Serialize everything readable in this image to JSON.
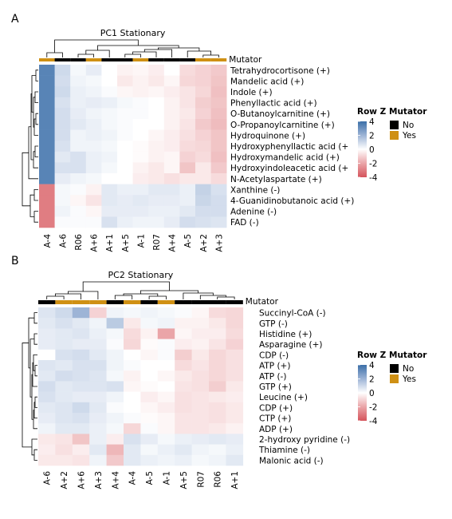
{
  "colors": {
    "scale": [
      "#d5545c",
      "#eaa5a8",
      "#ffffff",
      "#9db4d6",
      "#3b6fa8"
    ],
    "mutator_no": "#000000",
    "mutator_yes": "#cf9014",
    "dendro": "#000000"
  },
  "chart_data": [
    {
      "panel_label": "A",
      "type": "heatmap",
      "title": "PC1 Stationary",
      "annotation_label": "Mutator",
      "columns": [
        "A-4",
        "A-6",
        "R06",
        "A+6",
        "A+1",
        "A+5",
        "A-1",
        "R07",
        "A+4",
        "A-5",
        "A+2",
        "A+3"
      ],
      "mutator": [
        "Yes",
        "No",
        "No",
        "Yes",
        "No",
        "No",
        "Yes",
        "No",
        "No",
        "No",
        "Yes",
        "Yes"
      ],
      "rows": [
        "Tetrahydrocortisone (+)",
        "Mandelic acid (+)",
        "Indole (+)",
        "Phenyllactic acid (+)",
        "O-Butanoylcarnitine (+)",
        "O-Propanoylcarnitine (+)",
        "Hydroquinone (+)",
        "Hydroxyphenyllactic acid (+",
        "Hydroxymandelic acid (+)",
        "Hydroxyindoleacetic acid (+",
        "N-Acetylaspartate (+)",
        "Xanthine (-)",
        "4-Guanidinobutanoic acid (+)",
        "Adenine (-)",
        "FAD (-)"
      ],
      "values": [
        [
          3.4,
          1.0,
          0.2,
          0.5,
          0.0,
          -0.3,
          -0.2,
          -0.4,
          0.0,
          -0.8,
          -1.0,
          -1.2
        ],
        [
          3.4,
          0.9,
          0.3,
          0.2,
          0.0,
          -0.5,
          -0.3,
          -0.5,
          -0.2,
          -0.9,
          -1.0,
          -1.3
        ],
        [
          3.4,
          1.0,
          0.4,
          0.3,
          0.1,
          -0.2,
          -0.3,
          -0.2,
          -0.4,
          -0.6,
          -0.9,
          -1.4
        ],
        [
          3.4,
          0.8,
          0.4,
          0.5,
          0.4,
          0.2,
          0.1,
          0.0,
          -0.3,
          -0.6,
          -1.1,
          -1.3
        ],
        [
          3.4,
          0.9,
          0.5,
          0.3,
          0.2,
          0.1,
          0.1,
          0.0,
          -0.3,
          -0.5,
          -1.0,
          -1.4
        ],
        [
          3.4,
          0.9,
          0.6,
          0.4,
          0.2,
          0.1,
          0.0,
          0.0,
          -0.3,
          -0.6,
          -1.2,
          -1.5
        ],
        [
          3.4,
          0.9,
          0.3,
          0.4,
          0.3,
          0.1,
          0.0,
          -0.2,
          -0.4,
          -0.7,
          -1.0,
          -1.3
        ],
        [
          3.4,
          0.8,
          0.3,
          0.3,
          0.2,
          0.0,
          -0.1,
          -0.3,
          -0.4,
          -0.8,
          -0.9,
          -1.3
        ],
        [
          3.4,
          0.6,
          0.8,
          0.4,
          0.3,
          0.0,
          -0.1,
          -0.3,
          -0.2,
          -1.0,
          -0.8,
          -1.4
        ],
        [
          3.4,
          0.8,
          0.8,
          0.4,
          0.2,
          0.0,
          -0.3,
          -0.5,
          -0.2,
          -1.3,
          -0.5,
          -1.2
        ],
        [
          3.4,
          0.5,
          0.3,
          0.2,
          0.0,
          0.0,
          -0.4,
          -0.5,
          -0.7,
          -0.5,
          -0.5,
          -0.8
        ],
        [
          -3.0,
          0.2,
          0.1,
          -0.3,
          0.6,
          0.4,
          0.4,
          0.6,
          0.6,
          0.4,
          1.2,
          0.8
        ],
        [
          -3.0,
          0.2,
          -0.2,
          -0.6,
          0.6,
          0.5,
          0.6,
          0.5,
          0.5,
          0.4,
          1.1,
          0.9
        ],
        [
          -3.0,
          0.3,
          0.1,
          -0.2,
          0.5,
          0.5,
          0.5,
          0.4,
          0.4,
          0.6,
          0.9,
          0.9
        ],
        [
          -3.0,
          0.1,
          0.1,
          0.1,
          0.8,
          0.4,
          0.3,
          0.3,
          0.5,
          0.9,
          0.8,
          0.7
        ]
      ]
    },
    {
      "panel_label": "B",
      "type": "heatmap",
      "title": "PC2 Stationary",
      "annotation_label": "Mutator",
      "columns": [
        "A-6",
        "A+2",
        "A+6",
        "A+3",
        "A+4",
        "A-4",
        "A-5",
        "A-1",
        "A+5",
        "R07",
        "R06",
        "A+1"
      ],
      "mutator": [
        "No",
        "Yes",
        "Yes",
        "Yes",
        "No",
        "Yes",
        "No",
        "Yes",
        "No",
        "No",
        "No",
        "No"
      ],
      "rows": [
        "Succinyl-CoA (-)",
        "GTP (-)",
        "Histidine (+)",
        "Asparagine (+)",
        "CDP (-)",
        "ATP (+)",
        "ATP (-)",
        "GTP (+)",
        "Leucine (+)",
        "CDP (+)",
        "CTP (+)",
        "ADP (+)",
        "2-hydroxy pyridine (-)",
        "Thiamine (-)",
        "Malonic acid (-)"
      ],
      "values": [
        [
          0.7,
          1.0,
          2.0,
          -1.0,
          0.3,
          0.2,
          0.3,
          0.2,
          0.1,
          -0.2,
          -0.8,
          -0.9
        ],
        [
          0.6,
          0.8,
          0.6,
          0.3,
          1.4,
          -0.5,
          0.2,
          0.3,
          -0.3,
          -0.3,
          -0.5,
          -0.9
        ],
        [
          0.5,
          0.6,
          0.7,
          0.4,
          0.2,
          -0.8,
          -0.3,
          -2.0,
          -0.2,
          -0.4,
          -0.4,
          -0.8
        ],
        [
          0.5,
          0.6,
          0.5,
          0.5,
          0.1,
          -0.9,
          -0.1,
          0.1,
          -0.4,
          -0.3,
          -0.6,
          -1.0
        ],
        [
          0.0,
          0.8,
          0.9,
          0.6,
          0.3,
          0.0,
          -0.2,
          0.1,
          -1.1,
          -0.5,
          -0.9,
          -0.7
        ],
        [
          0.7,
          0.6,
          0.8,
          0.8,
          0.3,
          0.1,
          0.0,
          0.0,
          -0.8,
          -0.6,
          -0.9,
          -0.7
        ],
        [
          0.6,
          0.9,
          0.8,
          0.7,
          0.2,
          -0.3,
          0.0,
          -0.2,
          -0.5,
          -0.7,
          -0.9,
          -0.7
        ],
        [
          0.9,
          0.6,
          0.7,
          0.7,
          0.8,
          -0.2,
          -0.1,
          0.0,
          -0.6,
          -0.7,
          -1.1,
          -0.5
        ],
        [
          0.8,
          0.6,
          0.5,
          0.5,
          0.3,
          0.0,
          -0.4,
          -0.2,
          -0.7,
          -0.6,
          -0.5,
          -0.4
        ],
        [
          0.6,
          0.7,
          1.0,
          0.6,
          0.1,
          0.0,
          -0.2,
          -0.4,
          -0.7,
          -0.6,
          -0.7,
          -0.5
        ],
        [
          0.5,
          0.7,
          0.8,
          0.5,
          0.3,
          0.1,
          -0.1,
          -0.2,
          -0.6,
          -0.6,
          -0.7,
          -0.5
        ],
        [
          0.3,
          0.6,
          0.6,
          0.4,
          0.2,
          -0.9,
          0.1,
          -0.2,
          -0.6,
          -0.6,
          -0.5,
          -0.3
        ],
        [
          -0.5,
          -0.6,
          -1.3,
          0.4,
          -0.4,
          0.8,
          0.5,
          0.2,
          0.4,
          0.5,
          0.6,
          0.5
        ],
        [
          -0.4,
          -0.7,
          -0.4,
          0.6,
          -1.6,
          0.6,
          0.2,
          0.4,
          0.6,
          0.3,
          0.2,
          0.4
        ],
        [
          -0.5,
          -0.5,
          -0.6,
          0.3,
          -1.2,
          0.6,
          0.4,
          0.3,
          0.4,
          0.2,
          0.3,
          0.6
        ]
      ]
    }
  ],
  "legends": {
    "row_z": {
      "title": "Row Z",
      "ticks": [
        "4",
        "2",
        "0",
        "-2",
        "-4"
      ],
      "tick_values": [
        4,
        2,
        0,
        -2,
        -4
      ],
      "range": [
        -4,
        4
      ]
    },
    "mutator": {
      "title": "Mutator",
      "items": [
        {
          "label": "No",
          "color": "#000000"
        },
        {
          "label": "Yes",
          "color": "#cf9014"
        }
      ]
    }
  }
}
